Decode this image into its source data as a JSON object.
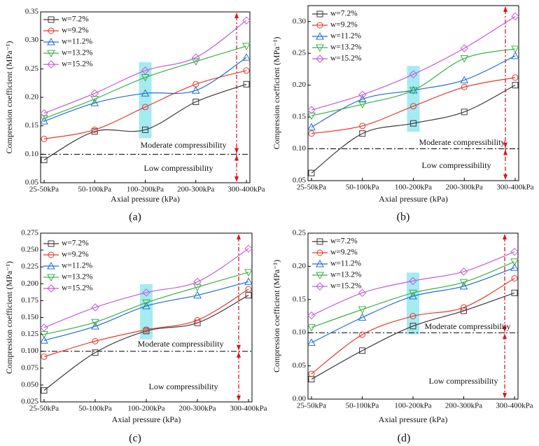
{
  "chart_data": [
    {
      "type": "line",
      "panel": "(a)",
      "x_label": "Axial pressure (kPa)",
      "y_label": "Compression coefficient (MPa⁻¹)",
      "categories": [
        "25-50kPa",
        "50-100kPa",
        "100-200kPa",
        "200-300kPa",
        "300-400kPa"
      ],
      "ylim": [
        0.05,
        0.35
      ],
      "yticks": [
        0.05,
        {
          "value": 0.1,
          "label": "0.10"
        },
        0.15,
        {
          "value": 0.2,
          "label": "0.20"
        },
        0.25,
        {
          "value": 0.3,
          "label": "0.30"
        },
        0.35
      ],
      "reference_line": 0.1,
      "annotations": [
        "Moderate compressibility",
        "Low compressibility"
      ],
      "series": [
        {
          "name": "w=7.2%",
          "color": "#3a3a3a",
          "values": [
            0.09,
            0.14,
            0.143,
            0.192,
            0.223
          ]
        },
        {
          "name": "w=9.2%",
          "color": "#e8392b",
          "values": [
            0.127,
            0.143,
            0.183,
            0.223,
            0.247
          ]
        },
        {
          "name": "w=11.2%",
          "color": "#1f6fd0",
          "values": [
            0.158,
            0.19,
            0.207,
            0.212,
            0.27
          ]
        },
        {
          "name": "w=13.2%",
          "color": "#3cb043",
          "values": [
            0.163,
            0.197,
            0.235,
            0.263,
            0.29
          ]
        },
        {
          "name": "w=15.2%",
          "color": "#c45ad6",
          "values": [
            0.172,
            0.207,
            0.247,
            0.27,
            0.335
          ]
        }
      ]
    },
    {
      "type": "line",
      "panel": "(b)",
      "x_label": "Axial pressure (kPa)",
      "y_label": "Compression coefficient (MPa⁻¹)",
      "categories": [
        "25-50kPa",
        "50-100kPa",
        "100-200kPa",
        "200-300kPa",
        "300-400kPa"
      ],
      "ylim": [
        0.05,
        0.325
      ],
      "yticks": [
        0.05,
        {
          "value": 0.1,
          "label": "0.10"
        },
        0.15,
        {
          "value": 0.2,
          "label": "0.20"
        },
        0.25,
        {
          "value": 0.3,
          "label": "0.30"
        }
      ],
      "reference_line": 0.1,
      "annotations": [
        "Moderate compressibility",
        "Low compressibility"
      ],
      "series": [
        {
          "name": "w=7.2%",
          "color": "#3a3a3a",
          "values": [
            0.062,
            0.124,
            0.14,
            0.158,
            0.2
          ]
        },
        {
          "name": "w=9.2%",
          "color": "#e8392b",
          "values": [
            0.124,
            0.136,
            0.167,
            0.197,
            0.212
          ]
        },
        {
          "name": "w=11.2%",
          "color": "#1f6fd0",
          "values": [
            0.134,
            0.178,
            0.192,
            0.208,
            0.246
          ]
        },
        {
          "name": "w=13.2%",
          "color": "#3cb043",
          "values": [
            0.152,
            0.17,
            0.192,
            0.242,
            0.257
          ]
        },
        {
          "name": "w=15.2%",
          "color": "#c45ad6",
          "values": [
            0.161,
            0.185,
            0.217,
            0.258,
            0.308
          ]
        }
      ]
    },
    {
      "type": "line",
      "panel": "(c)",
      "x_label": "Axial pressure (kPa)",
      "y_label": "Compression coefficient (MPa⁻¹)",
      "categories": [
        "25-50kPa",
        "50-100kPa",
        "100-200kPa",
        "200-300kPa",
        "300-400kPa"
      ],
      "ylim": [
        0.025,
        0.275
      ],
      "yticks": [
        0.025,
        {
          "value": 0.05,
          "label": "0.050"
        },
        0.075,
        {
          "value": 0.1,
          "label": "0.100"
        },
        0.125,
        {
          "value": 0.15,
          "label": "0.150"
        },
        0.175,
        {
          "value": 0.2,
          "label": "0.200"
        },
        0.225,
        {
          "value": 0.25,
          "label": "0.250"
        },
        0.275
      ],
      "reference_line": 0.1,
      "annotations": [
        "Moderate compressibility",
        "Low compressibility"
      ],
      "series": [
        {
          "name": "w=7.2%",
          "color": "#3a3a3a",
          "values": [
            0.042,
            0.098,
            0.13,
            0.142,
            0.183
          ]
        },
        {
          "name": "w=9.2%",
          "color": "#e8392b",
          "values": [
            0.092,
            0.115,
            0.132,
            0.146,
            0.192
          ]
        },
        {
          "name": "w=11.2%",
          "color": "#1f6fd0",
          "values": [
            0.116,
            0.137,
            0.167,
            0.183,
            0.203
          ]
        },
        {
          "name": "w=13.2%",
          "color": "#3cb043",
          "values": [
            0.125,
            0.143,
            0.172,
            0.195,
            0.217
          ]
        },
        {
          "name": "w=15.2%",
          "color": "#c45ad6",
          "values": [
            0.135,
            0.165,
            0.187,
            0.203,
            0.252
          ]
        }
      ]
    },
    {
      "type": "line",
      "panel": "(d)",
      "x_label": "Axial pressure (kPa)",
      "y_label": "Compression coefficient (MPa⁻¹)",
      "categories": [
        "25-50kPa",
        "50-100kPa",
        "100-200kPa",
        "200-300kPa",
        "300-400kPa"
      ],
      "ylim": [
        0,
        0.25
      ],
      "yticks": [
        {
          "value": 0,
          "label": "0.00"
        },
        0.05,
        {
          "value": 0.1,
          "label": "0.10"
        },
        0.15,
        {
          "value": 0.2,
          "label": "0.20"
        },
        0.25
      ],
      "reference_line": 0.1,
      "annotations": [
        "Moderate compressibility",
        "Low compressibility"
      ],
      "series": [
        {
          "name": "w=7.2%",
          "color": "#3a3a3a",
          "values": [
            0.03,
            0.073,
            0.11,
            0.133,
            0.16
          ]
        },
        {
          "name": "w=9.2%",
          "color": "#e8392b",
          "values": [
            0.038,
            0.097,
            0.125,
            0.138,
            0.182
          ]
        },
        {
          "name": "w=11.2%",
          "color": "#1f6fd0",
          "values": [
            0.085,
            0.123,
            0.155,
            0.17,
            0.198
          ]
        },
        {
          "name": "w=13.2%",
          "color": "#3cb043",
          "values": [
            0.108,
            0.135,
            0.16,
            0.176,
            0.207
          ]
        },
        {
          "name": "w=15.2%",
          "color": "#c45ad6",
          "values": [
            0.126,
            0.16,
            0.178,
            0.192,
            0.222
          ]
        }
      ]
    }
  ]
}
